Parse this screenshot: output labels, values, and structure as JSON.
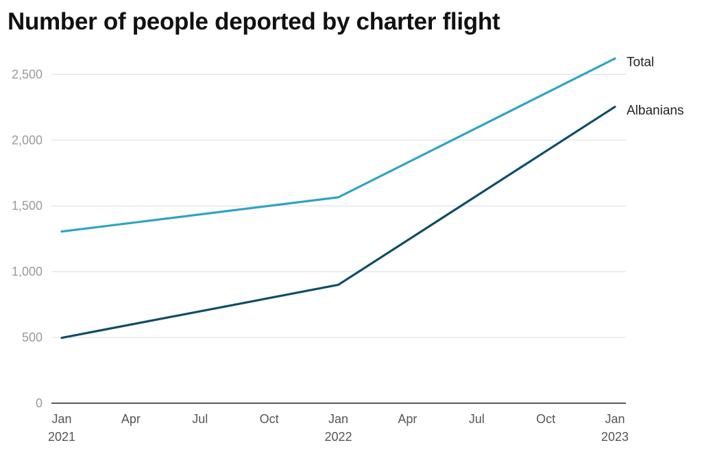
{
  "chart_data": {
    "type": "line",
    "title": "Number of people deported by charter flight",
    "xlabel": "",
    "ylabel": "",
    "x": [
      "2021-01",
      "2022-01",
      "2023-01"
    ],
    "x_tick_labels": [
      {
        "month": "Jan",
        "year": "2021"
      },
      {
        "month": "Apr",
        "year": ""
      },
      {
        "month": "Jul",
        "year": ""
      },
      {
        "month": "Oct",
        "year": ""
      },
      {
        "month": "Jan",
        "year": "2022"
      },
      {
        "month": "Apr",
        "year": ""
      },
      {
        "month": "Jul",
        "year": ""
      },
      {
        "month": "Oct",
        "year": ""
      },
      {
        "month": "Jan",
        "year": "2023"
      }
    ],
    "y_ticks": [
      0,
      500,
      1000,
      1500,
      2000,
      2500
    ],
    "y_tick_labels": [
      "0",
      "500",
      "1,000",
      "1,500",
      "2,000",
      "2,500"
    ],
    "ylim": [
      0,
      2700
    ],
    "grid": true,
    "legend": "direct labels at line ends",
    "series": [
      {
        "name": "Total",
        "color": "#2ea3c7",
        "values": [
          1305,
          1565,
          2620
        ]
      },
      {
        "name": "Albanians",
        "color": "#0f4d68",
        "values": [
          497,
          900,
          2253
        ]
      }
    ]
  }
}
